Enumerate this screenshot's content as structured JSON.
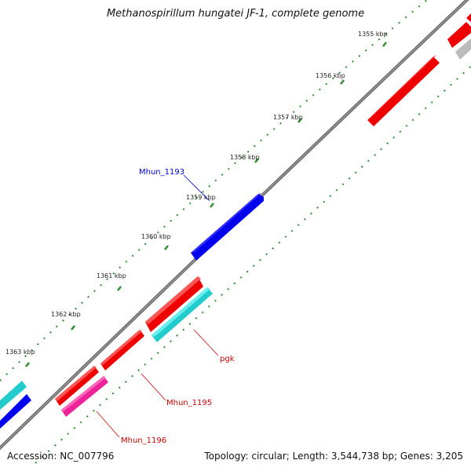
{
  "title": "Methanospirillum hungatei JF-1, complete genome",
  "footer": {
    "accession": "Accession: NC_007796",
    "summary": "Topology: circular; Length: 3,544,738 bp; Genes: 3,205"
  },
  "tick_labels": [
    "1355 kbp",
    "1356 kbp",
    "1357 kbp",
    "1358 kbp",
    "1359 kbp",
    "1360 kbp",
    "1361 kbp",
    "1362 kbp",
    "1363 kbp"
  ],
  "gene_labels": [
    {
      "name": "Mhun_1193",
      "color": "#0000cc"
    },
    {
      "name": "pgk",
      "color": "#cc0000"
    },
    {
      "name": "Mhun_1195",
      "color": "#cc0000"
    },
    {
      "name": "Mhun_1196",
      "color": "#cc0000"
    }
  ],
  "colors": {
    "backbone": "#808080",
    "ticks": "#2f8f2f",
    "cds_forward": "#0000ee",
    "cds_reverse": "#ee0000",
    "rna": "#22cccc",
    "other": "#ee2299",
    "pseudo": "#bbbbbb"
  }
}
